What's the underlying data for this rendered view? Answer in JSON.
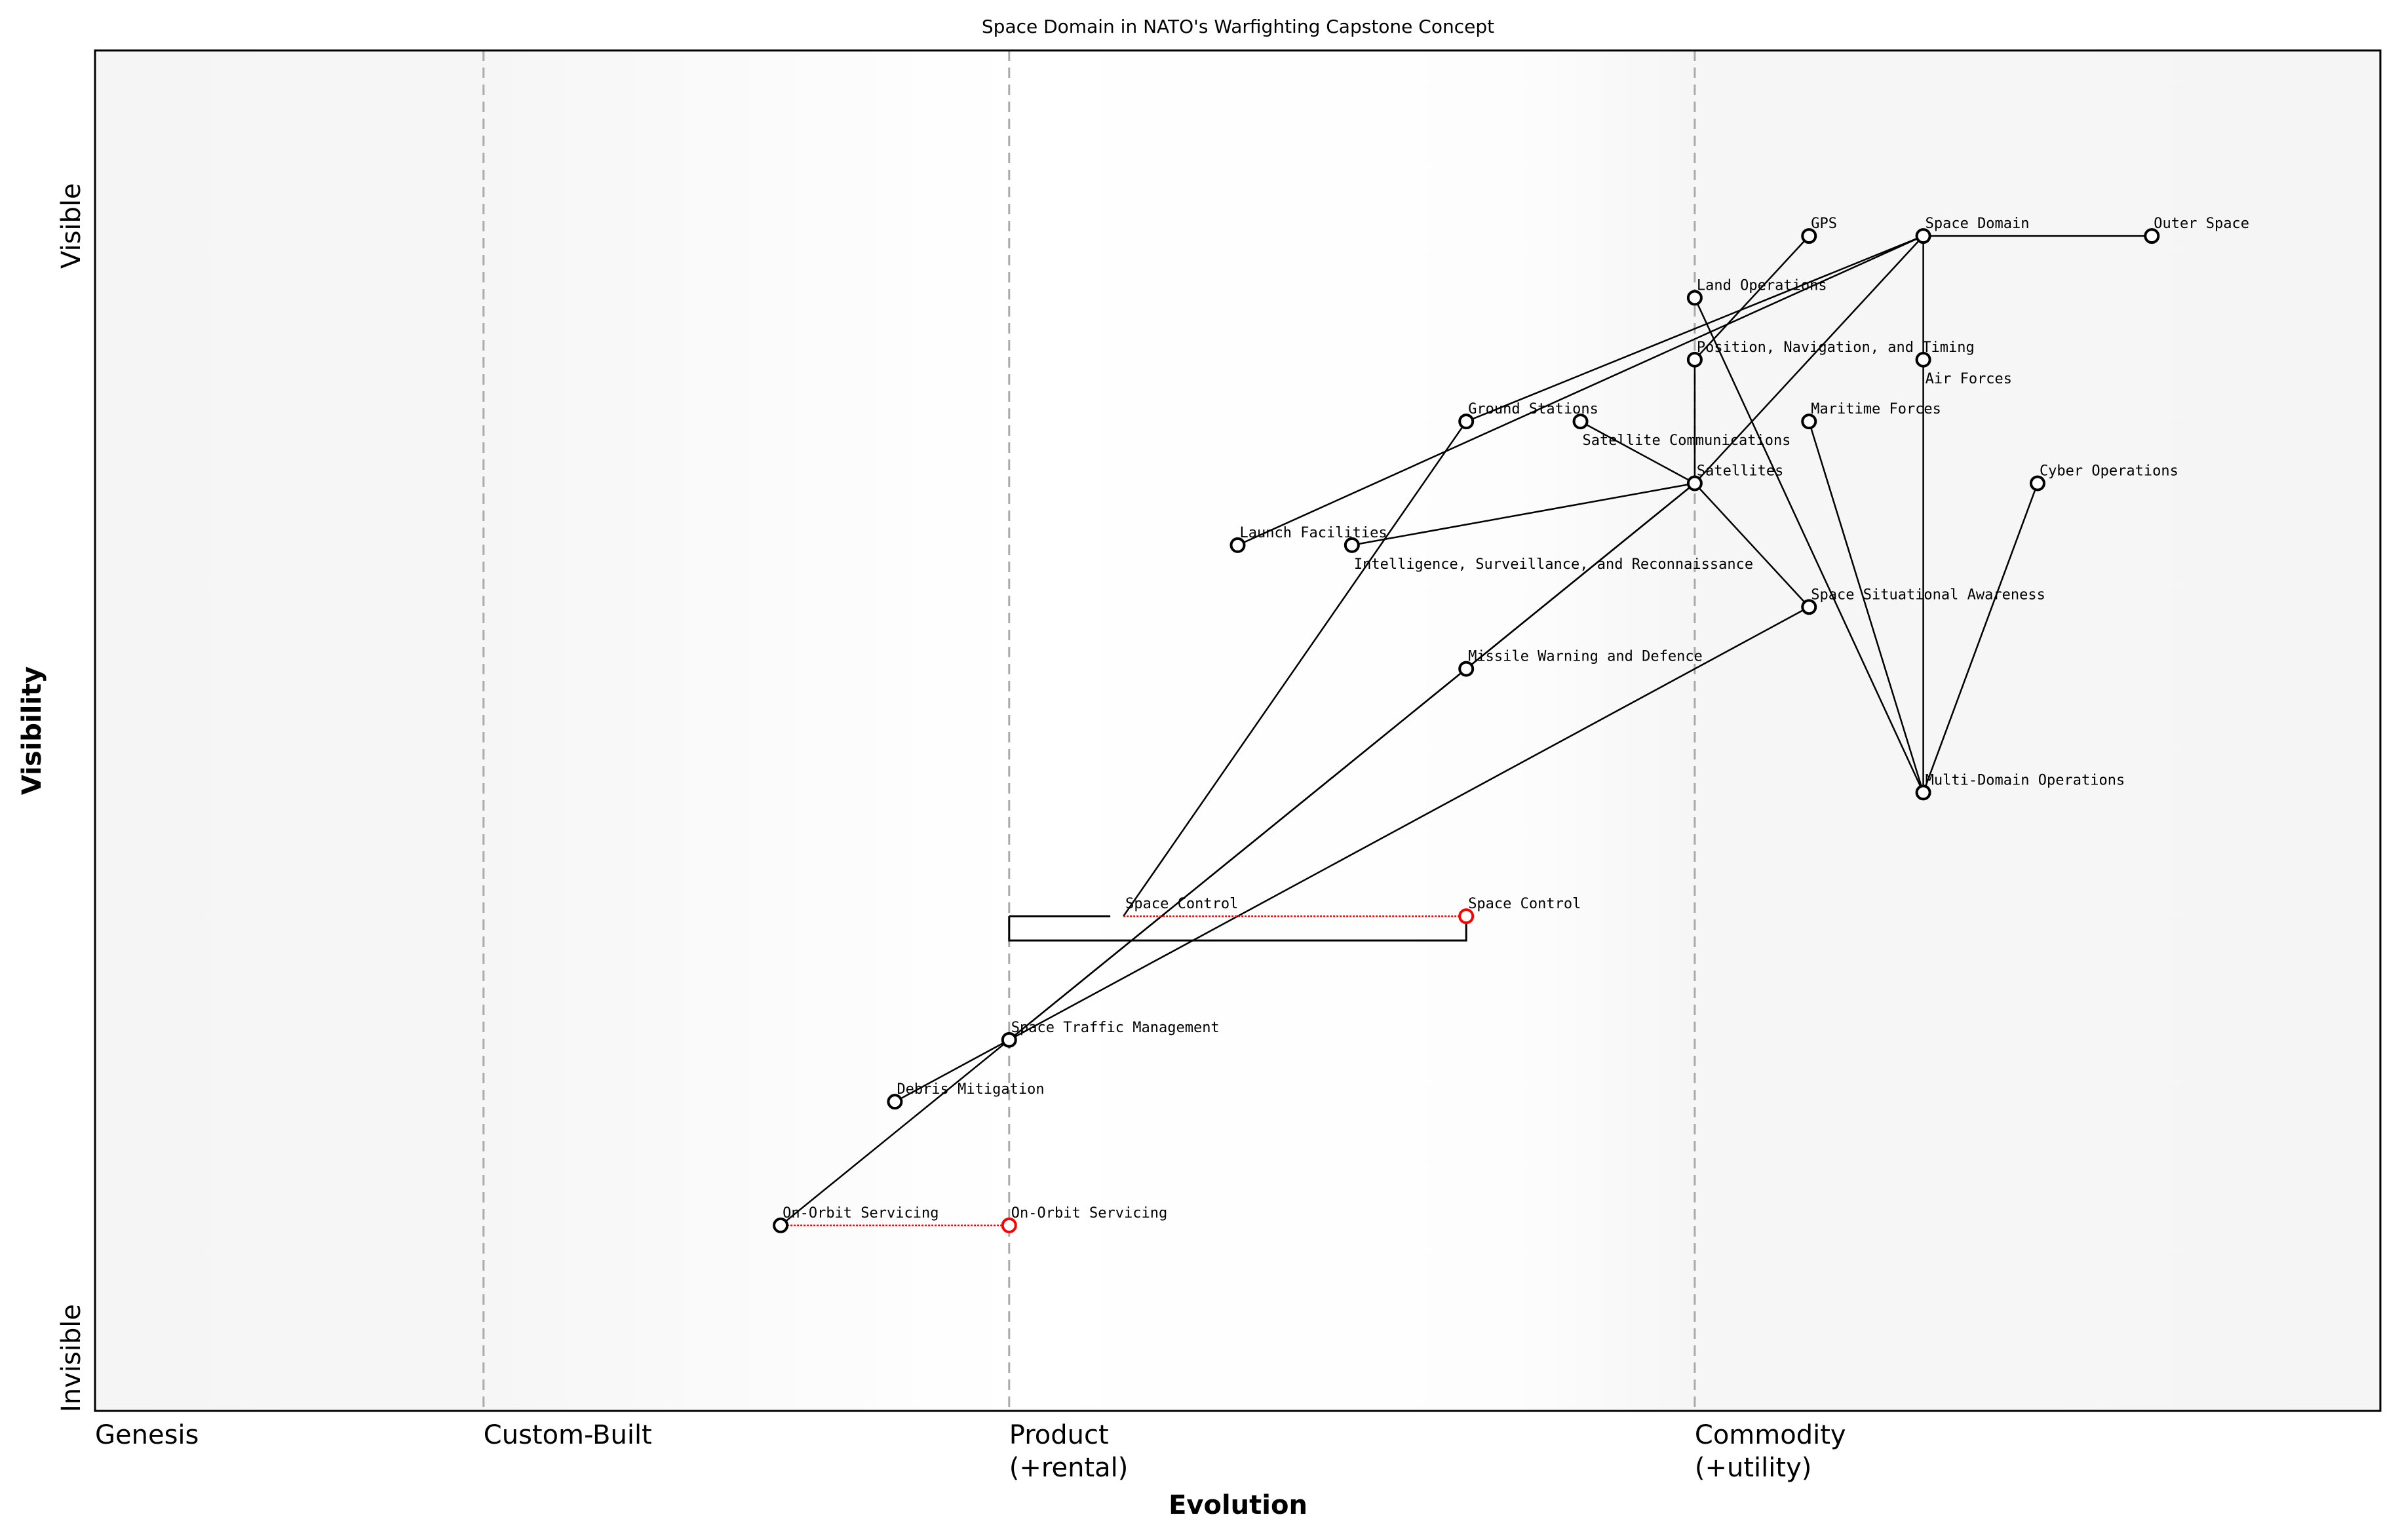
{
  "chart_data": {
    "type": "wardley-map",
    "title": "Space Domain in NATO's Warfighting Capstone Concept",
    "xlabel": "Evolution",
    "ylabel": "Visibility",
    "y_top_label": "Visible",
    "y_bottom_label": "Invisible",
    "xlim": [
      0,
      1
    ],
    "ylim": [
      0,
      1.1
    ],
    "stages": [
      {
        "label": "Genesis",
        "line1": "Genesis",
        "line2": "",
        "evolution": 0.0
      },
      {
        "label": "Custom-Built",
        "line1": "Custom-Built",
        "line2": "",
        "evolution": 0.17
      },
      {
        "label": "Product (+rental)",
        "line1": "Product",
        "line2": "(+rental)",
        "evolution": 0.4
      },
      {
        "label": "Commodity (+utility)",
        "line1": "Commodity",
        "line2": "(+utility)",
        "evolution": 0.7
      }
    ],
    "colors": {
      "node": "#000000",
      "evolved": "#ff0000",
      "stage_line": "#aaaaaa",
      "shade": "#f5f5f5"
    },
    "nodes": [
      {
        "name": "GPS",
        "evolution": 0.75,
        "visibility": 0.95
      },
      {
        "name": "Space Domain",
        "evolution": 0.8,
        "visibility": 0.95
      },
      {
        "name": "Outer Space",
        "evolution": 0.9,
        "visibility": 0.95
      },
      {
        "name": "Land Operations",
        "evolution": 0.7,
        "visibility": 0.9
      },
      {
        "name": "Position, Navigation, and Timing",
        "evolution": 0.7,
        "visibility": 0.85
      },
      {
        "name": "Air Forces",
        "evolution": 0.8,
        "visibility": 0.85
      },
      {
        "name": "Ground Stations",
        "evolution": 0.6,
        "visibility": 0.8
      },
      {
        "name": "Satellite Communications",
        "evolution": 0.65,
        "visibility": 0.8
      },
      {
        "name": "Maritime Forces",
        "evolution": 0.75,
        "visibility": 0.8
      },
      {
        "name": "Satellites",
        "evolution": 0.7,
        "visibility": 0.75
      },
      {
        "name": "Cyber Operations",
        "evolution": 0.85,
        "visibility": 0.75
      },
      {
        "name": "Launch Facilities",
        "evolution": 0.5,
        "visibility": 0.7
      },
      {
        "name": "Intelligence, Surveillance, and Reconnaissance",
        "evolution": 0.55,
        "visibility": 0.7
      },
      {
        "name": "Space Situational Awareness",
        "evolution": 0.75,
        "visibility": 0.65
      },
      {
        "name": "Missile Warning and Defence",
        "evolution": 0.6,
        "visibility": 0.6
      },
      {
        "name": "Multi-Domain Operations",
        "evolution": 0.8,
        "visibility": 0.5
      },
      {
        "name": "Space Control",
        "evolution": 0.45,
        "visibility": 0.4,
        "hidden_marker": true
      },
      {
        "name": "Space Traffic Management",
        "evolution": 0.4,
        "visibility": 0.3
      },
      {
        "name": "Debris Mitigation",
        "evolution": 0.35,
        "visibility": 0.25
      },
      {
        "name": "On-Orbit Servicing",
        "evolution": 0.3,
        "visibility": 0.15
      }
    ],
    "evolved_nodes": [
      {
        "name": "Space Control",
        "from": 0.45,
        "evolution": 0.6,
        "visibility": 0.4
      },
      {
        "name": "On-Orbit Servicing",
        "from": 0.3,
        "evolution": 0.4,
        "visibility": 0.15
      }
    ],
    "pipelines": [
      {
        "component": "Space Control",
        "start": 0.4,
        "end": 0.6
      }
    ],
    "edges": [
      [
        "Space Domain",
        "Outer Space"
      ],
      [
        "Space Domain",
        "Air Forces"
      ],
      [
        "Air Forces",
        "Multi-Domain Operations"
      ],
      [
        "Space Domain",
        "Satellites"
      ],
      [
        "Space Domain",
        "Launch Facilities"
      ],
      [
        "Space Domain",
        "Ground Stations"
      ],
      [
        "GPS",
        "Position, Navigation, and Timing"
      ],
      [
        "Position, Navigation, and Timing",
        "Satellites"
      ],
      [
        "Satellite Communications",
        "Satellites"
      ],
      [
        "Intelligence, Surveillance, and Reconnaissance",
        "Satellites"
      ],
      [
        "Satellites",
        "Space Situational Awareness"
      ],
      [
        "Satellites",
        "Missile Warning and Defence"
      ],
      [
        "Satellites",
        "Space Traffic Management"
      ],
      [
        "Missile Warning and Defence",
        "Space Traffic Management"
      ],
      [
        "Space Situational Awareness",
        "Space Traffic Management"
      ],
      [
        "Ground Stations",
        "Space Control"
      ],
      [
        "Land Operations",
        "Multi-Domain Operations"
      ],
      [
        "Maritime Forces",
        "Multi-Domain Operations"
      ],
      [
        "Cyber Operations",
        "Multi-Domain Operations"
      ],
      [
        "Space Traffic Management",
        "Debris Mitigation"
      ],
      [
        "Space Traffic Management",
        "On-Orbit Servicing"
      ]
    ]
  }
}
